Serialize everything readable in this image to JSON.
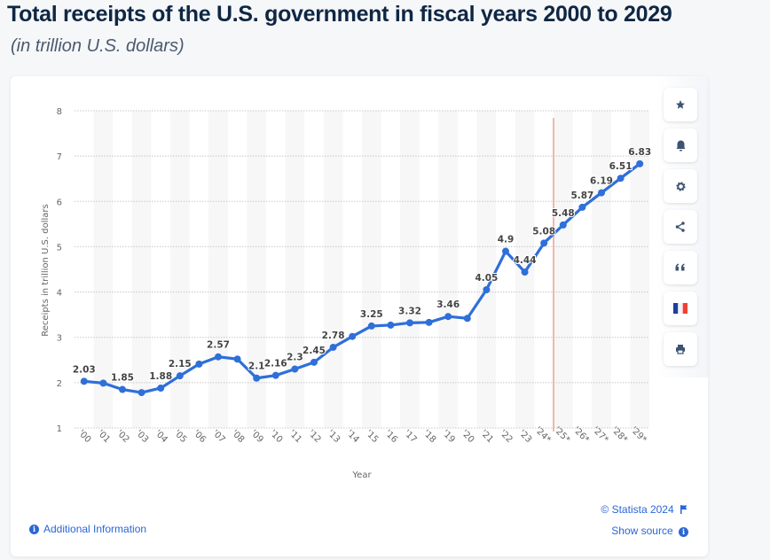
{
  "header": {
    "title": "Total receipts of the U.S. government in fiscal years 2000 to 2029",
    "subtitle": "(in trillion U.S. dollars)"
  },
  "toolbar": {
    "buttons": [
      {
        "name": "favorite",
        "icon": "star-icon",
        "glyph": "★"
      },
      {
        "name": "notification",
        "icon": "bell-icon",
        "glyph": "🔔"
      },
      {
        "name": "settings",
        "icon": "gear-icon",
        "glyph": "⚙"
      },
      {
        "name": "share",
        "icon": "share-icon",
        "glyph": "<"
      },
      {
        "name": "cite",
        "icon": "quote-icon",
        "glyph": "❝"
      },
      {
        "name": "language",
        "icon": "french-flag-icon",
        "glyph": ""
      },
      {
        "name": "print",
        "icon": "printer-icon",
        "glyph": "⎙"
      }
    ]
  },
  "footer": {
    "copyright": "© Statista 2024",
    "show_source": "Show source",
    "additional_info": "Additional Information"
  },
  "colors": {
    "line": "#2e6fd9",
    "forecast_marker": "#f0a097",
    "grid": "#c8c8c8",
    "band": "#f7f7f7"
  },
  "chart_data": {
    "type": "line",
    "title": "Total receipts of the U.S. government in fiscal years 2000 to 2029",
    "subtitle": "(in trillion U.S. dollars)",
    "xlabel": "Year",
    "ylabel": "Receipts in trillion U.S. dollars",
    "ylim": [
      1,
      8
    ],
    "yticks": [
      1,
      2,
      3,
      4,
      5,
      6,
      7,
      8
    ],
    "grid": true,
    "legend": "none",
    "forecast_divider_after": "'24*",
    "categories": [
      "'00",
      "'01",
      "'02",
      "'03",
      "'04",
      "'05",
      "'06",
      "'07",
      "'08",
      "'09",
      "'10",
      "'11",
      "'12",
      "'13",
      "'14",
      "'15",
      "'16",
      "'17",
      "'18",
      "'19",
      "'20",
      "'21",
      "'22",
      "'23",
      "'24*",
      "'25*",
      "'26*",
      "'27*",
      "'28*",
      "'29*"
    ],
    "series": [
      {
        "name": "Receipts",
        "values": [
          2.03,
          1.99,
          1.85,
          1.78,
          1.88,
          2.15,
          2.41,
          2.57,
          2.52,
          2.1,
          2.16,
          2.3,
          2.45,
          2.78,
          3.02,
          3.25,
          3.27,
          3.32,
          3.33,
          3.46,
          3.42,
          4.05,
          4.9,
          4.44,
          5.08,
          5.48,
          5.87,
          6.19,
          6.51,
          6.83
        ],
        "labels": [
          "2.03",
          null,
          "1.85",
          null,
          "1.88",
          "2.15",
          null,
          "2.57",
          null,
          "2.1",
          "2.16",
          "2.3",
          "2.45",
          "2.78",
          null,
          "3.25",
          null,
          "3.32",
          null,
          "3.46",
          null,
          "4.05",
          "4.9",
          "4.44",
          "5.08",
          "5.48",
          "5.87",
          "6.19",
          "6.51",
          "6.83"
        ]
      }
    ]
  }
}
